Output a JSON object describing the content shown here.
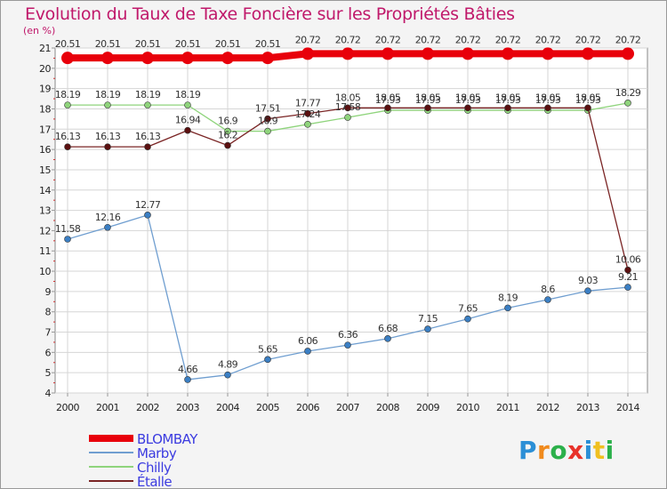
{
  "chart_data": {
    "type": "line",
    "title": "Evolution du Taux de Taxe Foncière sur les Propriétés Bâties",
    "ylabel": "(en %)",
    "xlabel": "",
    "x": [
      "2000",
      "2001",
      "2002",
      "2003",
      "2004",
      "2005",
      "2006",
      "2007",
      "2008",
      "2009",
      "2010",
      "2011",
      "2012",
      "2013",
      "2014"
    ],
    "ylim": [
      4,
      21
    ],
    "yticks": [
      "4",
      "5",
      "6",
      "7",
      "8",
      "9",
      "10",
      "11",
      "12",
      "13",
      "14",
      "15",
      "16",
      "17",
      "18",
      "19",
      "20",
      "21"
    ],
    "grid": true,
    "legend_position": "bottom-left",
    "series": [
      {
        "name": "BLOMBAY",
        "color": "#e8000b",
        "marker_color": "#e8000b",
        "values": [
          20.51,
          20.51,
          20.51,
          20.51,
          20.51,
          20.51,
          20.72,
          20.72,
          20.72,
          20.72,
          20.72,
          20.72,
          20.72,
          20.72,
          20.72
        ],
        "labels": [
          "20.51",
          "20.51",
          "20.51",
          "20.51",
          "20.51",
          "20.51",
          "20.72",
          "20.72",
          "20.72",
          "20.72",
          "20.72",
          "20.72",
          "20.72",
          "20.72",
          "20.72"
        ]
      },
      {
        "name": "Marby",
        "color": "#6f9ed0",
        "marker_color": "#3b7fc4",
        "values": [
          11.58,
          12.16,
          12.77,
          4.66,
          4.89,
          5.65,
          6.06,
          6.36,
          6.68,
          7.15,
          7.65,
          8.19,
          8.6,
          9.03,
          9.21
        ],
        "labels": [
          "11.58",
          "12.16",
          "12.77",
          "4.66",
          "4.89",
          "5.65",
          "6.06",
          "6.36",
          "6.68",
          "7.15",
          "7.65",
          "8.19",
          "8.6",
          "9.03",
          "9.21"
        ]
      },
      {
        "name": "Chilly",
        "color": "#8fd47c",
        "marker_color": "#8fd47c",
        "values": [
          18.19,
          18.19,
          18.19,
          18.19,
          16.9,
          16.9,
          17.24,
          17.58,
          17.93,
          17.93,
          17.93,
          17.93,
          17.93,
          17.93,
          18.29
        ],
        "labels": [
          "18.19",
          "18.19",
          "18.19",
          "18.19",
          "16.9",
          "16.9",
          "17.24",
          "17.58",
          "17.93",
          "17.93",
          "17.93",
          "17.93",
          "17.93",
          "17.93",
          "18.29"
        ]
      },
      {
        "name": "Étalle",
        "color": "#7a2424",
        "marker_color": "#5b1010",
        "values": [
          16.13,
          16.13,
          16.13,
          16.94,
          16.2,
          17.51,
          17.77,
          18.05,
          18.05,
          18.05,
          18.05,
          18.05,
          18.05,
          18.05,
          10.06
        ],
        "labels": [
          "16.13",
          "16.13",
          "16.13",
          "16.94",
          "16.2",
          "17.51",
          "17.77",
          "18.05",
          "18.05",
          "18.05",
          "18.05",
          "18.05",
          "18.05",
          "18.05",
          "10.06"
        ]
      }
    ]
  },
  "logo": {
    "text": "Proxiti",
    "letter_colors": [
      "#2b8fd6",
      "#f08a1c",
      "#2bb04a",
      "#e8322a",
      "#2b8fd6",
      "#f0c020",
      "#2bb04a"
    ]
  }
}
